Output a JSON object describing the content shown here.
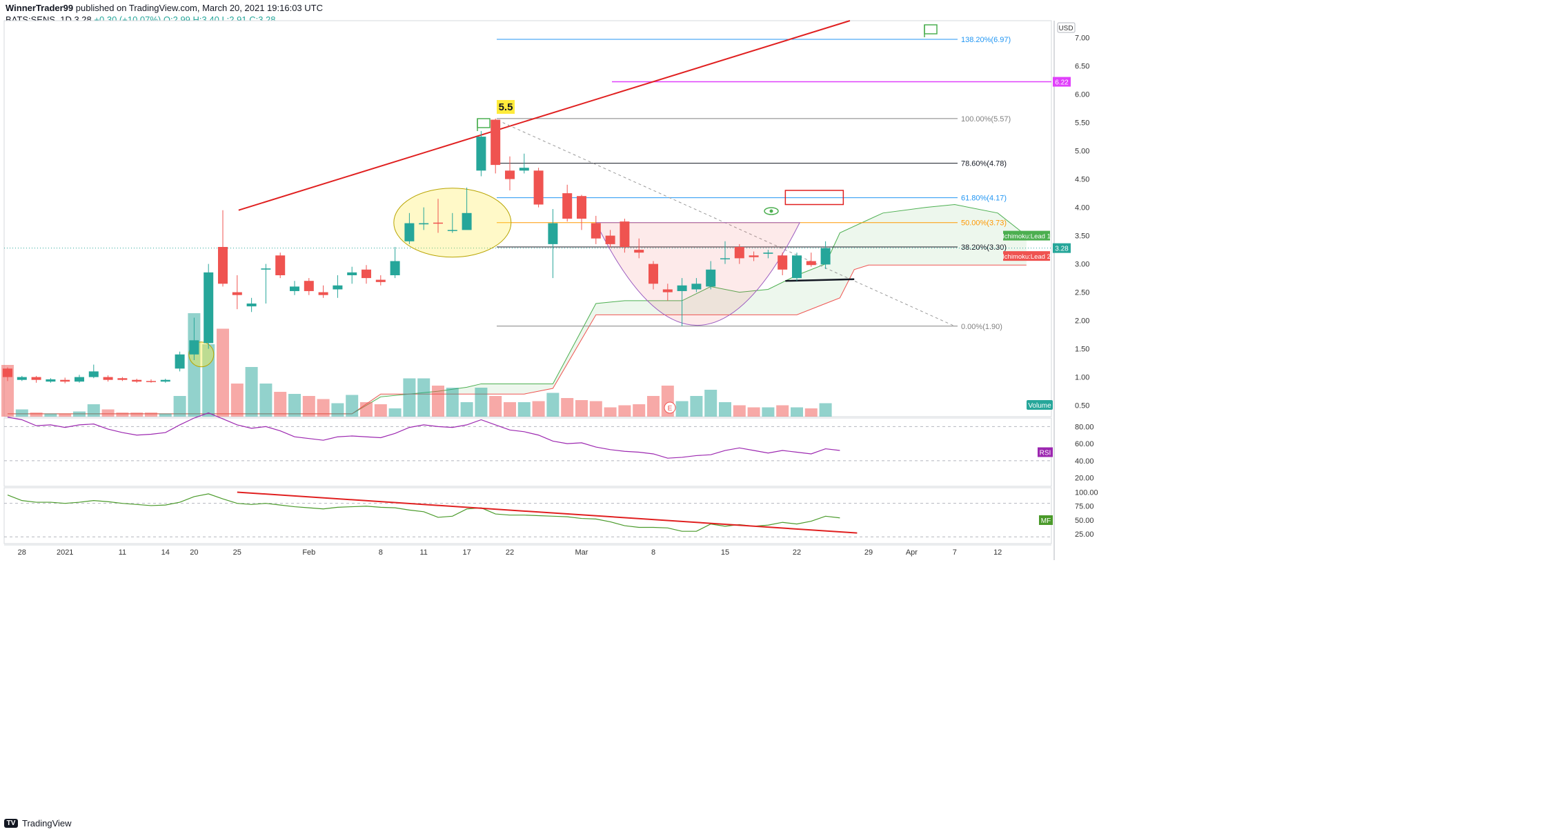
{
  "header": {
    "author": "WinnerTrader99",
    "published": "published on TradingView.com, March 20, 2021 19:16:03 UTC",
    "symbol": "BATS:SENS, 1D",
    "last": "3.28",
    "change": "+0.30 (+10.07%)",
    "ohlc": "O:2.99 H:3.40 L:2.91 C:3.28"
  },
  "footer": {
    "brand": "TradingView"
  },
  "currency_badge": "USD",
  "colors": {
    "up": "#26a69a",
    "down": "#ef5350",
    "trendline": "#e01f1f",
    "ichimoku_lead1": "#4caf50",
    "ichimoku_lead2": "#ef5350",
    "rsi": "#9c27b0",
    "mf": "#4a9a2a",
    "magenta_level": "#e040fb"
  },
  "chart_data": {
    "type": "candlestick",
    "price_axis": {
      "min": 0.3,
      "max": 7.3,
      "ticks": [
        "7.00",
        "6.50",
        "6.00",
        "5.50",
        "5.00",
        "4.50",
        "4.00",
        "3.50",
        "3.00",
        "2.50",
        "2.00",
        "1.50",
        "1.00",
        "0.50"
      ]
    },
    "x_axis_labels": [
      {
        "i": 1,
        "t": "28"
      },
      {
        "i": 4,
        "t": "2021"
      },
      {
        "i": 8,
        "t": "11"
      },
      {
        "i": 11,
        "t": "14"
      },
      {
        "i": 13,
        "t": "20"
      },
      {
        "i": 16,
        "t": "25"
      },
      {
        "i": 21,
        "t": "Feb"
      },
      {
        "i": 26,
        "t": "8"
      },
      {
        "i": 29,
        "t": "11"
      },
      {
        "i": 32,
        "t": "17"
      },
      {
        "i": 35,
        "t": "22"
      },
      {
        "i": 40,
        "t": "Mar"
      },
      {
        "i": 45,
        "t": "8"
      },
      {
        "i": 50,
        "t": "15"
      },
      {
        "i": 55,
        "t": "22"
      },
      {
        "i": 60,
        "t": "29"
      },
      {
        "i": 63,
        "t": "Apr"
      },
      {
        "i": 66,
        "t": "7"
      },
      {
        "i": 69,
        "t": "12"
      }
    ],
    "candles": [
      [
        1.15,
        1.0,
        1.17,
        0.93
      ],
      [
        0.95,
        1.0,
        1.02,
        0.93
      ],
      [
        1.0,
        0.95,
        1.02,
        0.9
      ],
      [
        0.92,
        0.96,
        0.98,
        0.9
      ],
      [
        0.95,
        0.92,
        0.99,
        0.89
      ],
      [
        0.92,
        1.0,
        1.04,
        0.9
      ],
      [
        1.0,
        1.1,
        1.22,
        0.98
      ],
      [
        1.0,
        0.95,
        1.03,
        0.92
      ],
      [
        0.98,
        0.95,
        1.0,
        0.93
      ],
      [
        0.95,
        0.92,
        0.97,
        0.9
      ],
      [
        0.93,
        0.92,
        0.96,
        0.9
      ],
      [
        0.92,
        0.95,
        0.97,
        0.9
      ],
      [
        1.15,
        1.4,
        1.45,
        1.1
      ],
      [
        1.4,
        1.65,
        2.05,
        1.3
      ],
      [
        1.6,
        2.85,
        3.0,
        1.5
      ],
      [
        3.3,
        2.65,
        3.95,
        2.6
      ],
      [
        2.5,
        2.45,
        2.8,
        2.2
      ],
      [
        2.25,
        2.3,
        2.4,
        2.15
      ],
      [
        2.9,
        2.92,
        3.0,
        2.3
      ],
      [
        3.15,
        2.8,
        3.2,
        2.75
      ],
      [
        2.52,
        2.6,
        2.7,
        2.45
      ],
      [
        2.7,
        2.52,
        2.75,
        2.45
      ],
      [
        2.5,
        2.45,
        2.62,
        2.4
      ],
      [
        2.55,
        2.62,
        2.8,
        2.4
      ],
      [
        2.8,
        2.85,
        2.95,
        2.65
      ],
      [
        2.9,
        2.75,
        2.98,
        2.65
      ],
      [
        2.72,
        2.68,
        2.8,
        2.62
      ],
      [
        2.8,
        3.05,
        3.3,
        2.75
      ],
      [
        3.4,
        3.72,
        3.9,
        3.35
      ],
      [
        3.7,
        3.72,
        4.0,
        3.6
      ],
      [
        3.73,
        3.72,
        4.15,
        3.55
      ],
      [
        3.6,
        3.6,
        3.9,
        3.55
      ],
      [
        3.6,
        3.9,
        4.35,
        3.65
      ],
      [
        4.65,
        5.25,
        5.35,
        4.55
      ],
      [
        5.55,
        4.75,
        5.57,
        4.6
      ],
      [
        4.65,
        4.5,
        4.9,
        4.3
      ],
      [
        4.65,
        4.7,
        4.95,
        4.6
      ],
      [
        4.65,
        4.05,
        4.7,
        4.0
      ],
      [
        3.35,
        3.72,
        3.97,
        2.75
      ],
      [
        4.25,
        3.8,
        4.4,
        3.75
      ],
      [
        4.2,
        3.8,
        4.22,
        3.6
      ],
      [
        3.72,
        3.45,
        3.85,
        3.35
      ],
      [
        3.5,
        3.35,
        3.6,
        3.3
      ],
      [
        3.75,
        3.3,
        3.8,
        3.2
      ],
      [
        3.25,
        3.2,
        3.45,
        3.1
      ],
      [
        3.0,
        2.65,
        3.05,
        2.55
      ],
      [
        2.55,
        2.5,
        2.65,
        2.35
      ],
      [
        2.52,
        2.62,
        2.75,
        1.9
      ],
      [
        2.55,
        2.65,
        2.75,
        2.5
      ],
      [
        2.6,
        2.9,
        3.05,
        2.55
      ],
      [
        3.1,
        3.1,
        3.4,
        3.0
      ],
      [
        3.3,
        3.1,
        3.35,
        3.0
      ],
      [
        3.15,
        3.12,
        3.22,
        3.05
      ],
      [
        3.18,
        3.2,
        3.25,
        3.1
      ],
      [
        3.15,
        2.9,
        3.2,
        2.8
      ],
      [
        2.75,
        3.15,
        3.2,
        2.7
      ],
      [
        3.05,
        2.98,
        3.2,
        2.95
      ],
      [
        2.99,
        3.28,
        3.4,
        2.91
      ]
    ],
    "volume": [
      0.5,
      0.07,
      0.04,
      0.03,
      0.03,
      0.05,
      0.12,
      0.07,
      0.04,
      0.04,
      0.04,
      0.03,
      0.2,
      1.0,
      0.7,
      0.85,
      0.32,
      0.48,
      0.32,
      0.24,
      0.22,
      0.2,
      0.17,
      0.13,
      0.21,
      0.14,
      0.12,
      0.08,
      0.37,
      0.37,
      0.3,
      0.28,
      0.14,
      0.28,
      0.2,
      0.14,
      0.14,
      0.15,
      0.23,
      0.18,
      0.16,
      0.15,
      0.09,
      0.11,
      0.12,
      0.2,
      0.3,
      0.15,
      0.2,
      0.26,
      0.14,
      0.11,
      0.09,
      0.09,
      0.11,
      0.09,
      0.08,
      0.13
    ],
    "volume_label": "Volume",
    "last_price_label": "3.28",
    "fibonacci": [
      {
        "label": "138.20%(6.97)",
        "price": 6.97,
        "color": "#2196f3"
      },
      {
        "label": "100.00%(5.57)",
        "price": 5.57,
        "color": "#808080"
      },
      {
        "label": "78.60%(4.78)",
        "price": 4.78,
        "color": "#131722"
      },
      {
        "label": "61.80%(4.17)",
        "price": 4.17,
        "color": "#2196f3"
      },
      {
        "label": "50.00%(3.73)",
        "price": 3.73,
        "color": "#ff9800"
      },
      {
        "label": "38.20%(3.30)",
        "price": 3.3,
        "color": "#131722"
      },
      {
        "label": "0.00%(1.90)",
        "price": 1.9,
        "color": "#808080"
      }
    ],
    "magenta_level": {
      "price": 6.22,
      "label": "6.22"
    },
    "annotation_text": "5.5",
    "ichimoku": {
      "lead1_label": "Ichimoku:Lead 1",
      "lead2_label": "Ichimoku:Lead 2",
      "lead1": [
        [
          0,
          0.35
        ],
        [
          24,
          0.35
        ],
        [
          26,
          0.65
        ],
        [
          30,
          0.75
        ],
        [
          32,
          0.82
        ],
        [
          33,
          0.88
        ],
        [
          38,
          0.88
        ],
        [
          41,
          2.3
        ],
        [
          43,
          2.35
        ],
        [
          47,
          2.35
        ],
        [
          49,
          2.6
        ],
        [
          51,
          2.5
        ],
        [
          53,
          2.55
        ],
        [
          55,
          2.8
        ],
        [
          57,
          3.0
        ],
        [
          58,
          3.55
        ],
        [
          61,
          3.9
        ],
        [
          64,
          4.0
        ],
        [
          66,
          4.05
        ],
        [
          69,
          3.9
        ],
        [
          71,
          3.5
        ]
      ],
      "lead2": [
        [
          0,
          0.35
        ],
        [
          24,
          0.35
        ],
        [
          26,
          0.7
        ],
        [
          36,
          0.7
        ],
        [
          38,
          0.8
        ],
        [
          41,
          2.1
        ],
        [
          55,
          2.1
        ],
        [
          57,
          2.3
        ],
        [
          58,
          2.4
        ],
        [
          59,
          2.9
        ],
        [
          60,
          2.98
        ],
        [
          71,
          2.98
        ]
      ]
    },
    "rsi": {
      "label": "RSI",
      "ticks": [
        "80.00",
        "60.00",
        "40.00",
        "20.00"
      ],
      "levels": [
        70,
        30
      ],
      "values": [
        91,
        88,
        81,
        82,
        79,
        82,
        83,
        77,
        73,
        70,
        71,
        73,
        82,
        90,
        96,
        89,
        82,
        78,
        80,
        75,
        68,
        66,
        64,
        68,
        69,
        68,
        67,
        72,
        79,
        82,
        80,
        79,
        82,
        88,
        82,
        76,
        74,
        70,
        63,
        60,
        61,
        56,
        53,
        51,
        50,
        48,
        43,
        44,
        46,
        47,
        52,
        55,
        52,
        49,
        52,
        50,
        48,
        54,
        52
      ]
    },
    "mf": {
      "label": "MF",
      "ticks": [
        "100.00",
        "75.00",
        "50.00",
        "25.00"
      ],
      "levels": [
        80,
        20
      ],
      "values": [
        95,
        85,
        82,
        82,
        80,
        82,
        85,
        83,
        80,
        78,
        76,
        77,
        82,
        92,
        97,
        88,
        80,
        78,
        80,
        77,
        74,
        72,
        70,
        73,
        74,
        75,
        73,
        72,
        68,
        65,
        55,
        57,
        70,
        72,
        61,
        59,
        59,
        58,
        57,
        56,
        53,
        52,
        47,
        40,
        37,
        37,
        36,
        30,
        30,
        43,
        39,
        42,
        39,
        41,
        46,
        43,
        48,
        57,
        54
      ]
    }
  }
}
